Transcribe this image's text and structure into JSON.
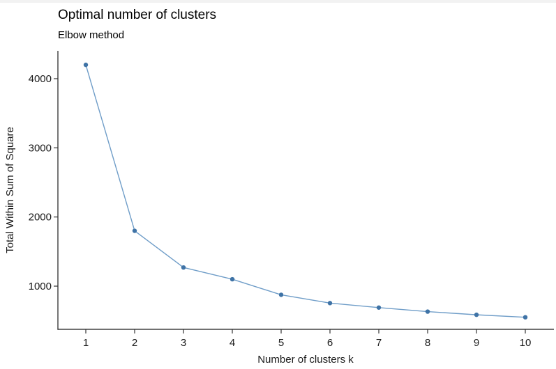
{
  "chart_data": {
    "type": "line",
    "title": "Optimal number of clusters",
    "subtitle": "Elbow method",
    "xlabel": "Number of clusters k",
    "ylabel": "Total Within Sum of Square",
    "x": [
      1,
      2,
      3,
      4,
      5,
      6,
      7,
      8,
      9,
      10
    ],
    "series": [
      {
        "name": "total-within-sum-of-square",
        "values": [
          4200,
          1800,
          1270,
          1100,
          875,
          755,
          690,
          632,
          586,
          550
        ]
      }
    ],
    "x_tick_labels": [
      "1",
      "2",
      "3",
      "4",
      "5",
      "6",
      "7",
      "8",
      "9",
      "10"
    ],
    "y_tick_values": [
      1000,
      2000,
      3000,
      4000
    ],
    "y_tick_labels": [
      "1000",
      "2000",
      "3000",
      "4000"
    ],
    "xlim": [
      0.45,
      10.6
    ],
    "ylim": [
      370,
      4400
    ],
    "grid": false,
    "legend": "none",
    "colors": {
      "line": "#6f9dc8",
      "point": "#3f73a6",
      "axis": "#1a1a1a",
      "tick": "#333333",
      "text": "#1a1a1a",
      "background": "#ffffff",
      "top_edge": "#f2f2f2"
    }
  }
}
